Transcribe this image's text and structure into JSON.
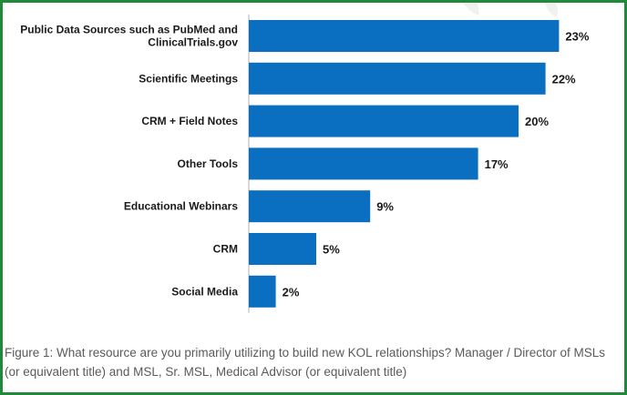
{
  "chart_data": {
    "type": "bar",
    "orientation": "horizontal",
    "categories": [
      [
        "Public Data Sources such as PubMed and",
        "ClinicalTrials.gov"
      ],
      [
        "Scientific Meetings"
      ],
      [
        "CRM + Field Notes"
      ],
      [
        "Other Tools"
      ],
      [
        "Educational Webinars"
      ],
      [
        "CRM"
      ],
      [
        "Social Media"
      ]
    ],
    "values": [
      23,
      22,
      20,
      17,
      9,
      5,
      2
    ],
    "value_labels": [
      "23%",
      "22%",
      "20%",
      "17%",
      "9%",
      "5%",
      "2%"
    ],
    "xlim": [
      0,
      25
    ],
    "bar_color": "#0b6fc1",
    "grid": false
  },
  "caption": "Figure 1: What resource are you primarily utilizing to build new KOL relationships? Manager / Director of MSLs (or equivalent title) and MSL, Sr. MSL, Medical Advisor (or equivalent title)",
  "frame_color": "#1e8a3a"
}
